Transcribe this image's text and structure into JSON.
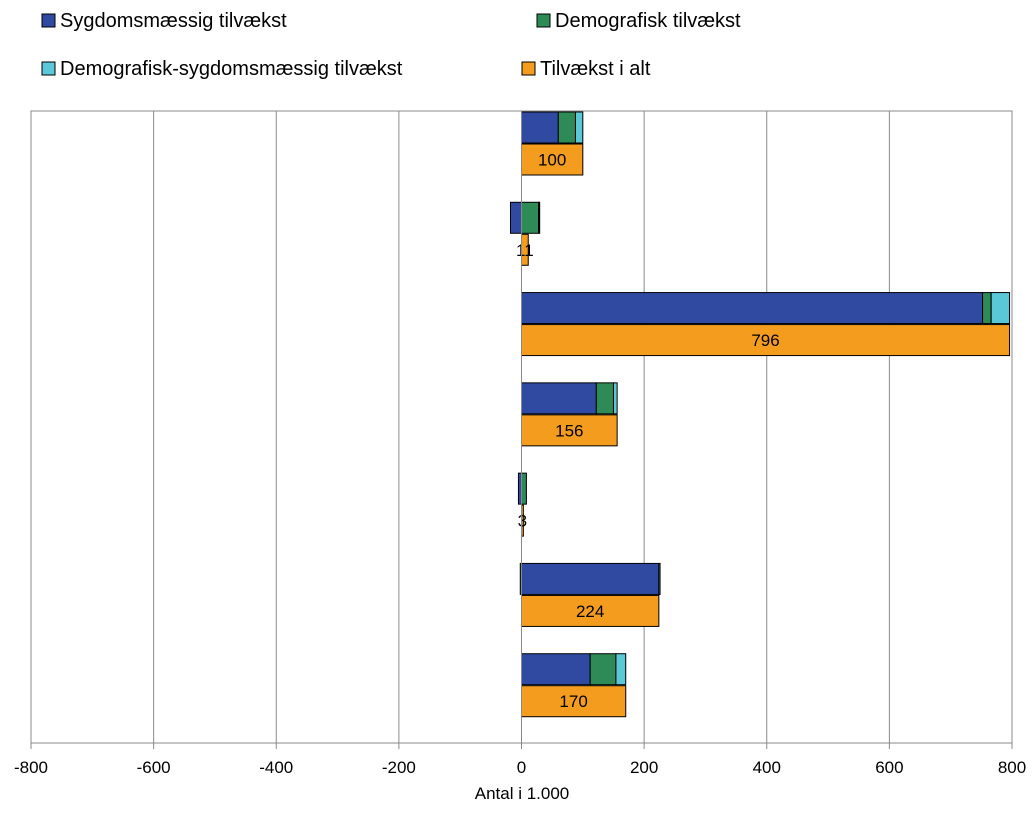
{
  "chart_data": {
    "type": "bar",
    "orientation": "horizontal",
    "title": "",
    "xlabel": "Antal i 1.000",
    "ylabel": "",
    "xlim": [
      -800,
      800
    ],
    "xticks": [
      -800,
      -600,
      -400,
      -200,
      0,
      200,
      400,
      600,
      800
    ],
    "grid": true,
    "legend_position": "top",
    "stacked_series": [
      {
        "name": "Sygdomsmæssig tilvækst",
        "color": "#2f4aa0",
        "values": [
          60,
          -18,
          752,
          122,
          -5,
          224,
          112
        ]
      },
      {
        "name": "Demografisk tilvækst",
        "color": "#2e8b57",
        "values": [
          28,
          28,
          14,
          28,
          8,
          -2,
          42
        ]
      },
      {
        "name": "Demografisk-sygdomsmæssig tilvækst",
        "color": "#5bc8d8",
        "values": [
          12,
          1,
          30,
          6,
          0,
          2,
          16
        ]
      }
    ],
    "total_series": {
      "name": "Tilvækst i alt",
      "color": "#f39c1e",
      "values": [
        100,
        11,
        796,
        156,
        3,
        224,
        170
      ]
    },
    "data_labels": [
      "100",
      "11",
      "796",
      "156",
      "3",
      "224",
      "170"
    ]
  }
}
